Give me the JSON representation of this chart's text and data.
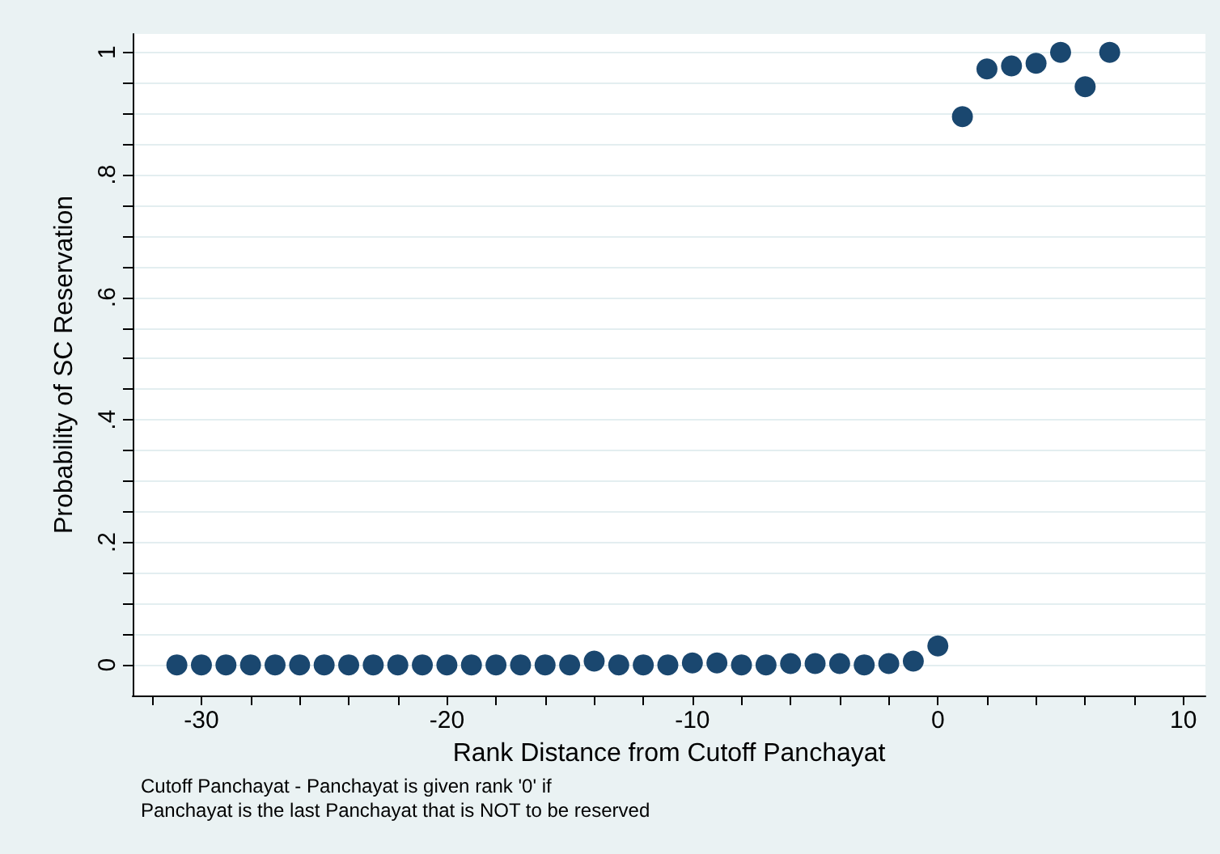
{
  "chart_data": {
    "type": "scatter",
    "xlabel": "Rank Distance from Cutoff Panchayat",
    "ylabel": "Probability of SC Reservation",
    "annotations": [
      "Cutoff Panchayat - Panchayat is given rank '0' if",
      "Panchayat is the last Panchayat that is NOT to be reserved"
    ],
    "x": [
      -31,
      -30,
      -29,
      -28,
      -27,
      -26,
      -25,
      -24,
      -23,
      -22,
      -21,
      -20,
      -19,
      -18,
      -17,
      -16,
      -15,
      -14,
      -13,
      -12,
      -11,
      -10,
      -9,
      -8,
      -7,
      -6,
      -5,
      -4,
      -3,
      -2,
      -1,
      0,
      1,
      2,
      3,
      4,
      5,
      6,
      7
    ],
    "series": [
      {
        "color": "#1a476f",
        "values": [
          0,
          0,
          0,
          0,
          0,
          0,
          0,
          0,
          0,
          0,
          0,
          0,
          0,
          0,
          0,
          0,
          0,
          0.006,
          0,
          0,
          0,
          0.003,
          0.003,
          0,
          0,
          0.002,
          0.002,
          0.002,
          0,
          0.002,
          0.006,
          0.031,
          0.895,
          0.973,
          0.978,
          0.982,
          1,
          0.944,
          1
        ]
      }
    ],
    "marker": "circle",
    "xlim": [
      -32.8,
      10.9
    ],
    "xticks": [
      {
        "value": -32,
        "label": null
      },
      -30,
      {
        "value": -28,
        "label": null
      },
      {
        "value": -26,
        "label": null
      },
      {
        "value": -24,
        "label": null
      },
      {
        "value": -22,
        "label": null
      },
      -20,
      {
        "value": -18,
        "label": null
      },
      {
        "value": -16,
        "label": null
      },
      {
        "value": -14,
        "label": null
      },
      {
        "value": -12,
        "label": null
      },
      -10,
      {
        "value": -8,
        "label": null
      },
      {
        "value": -6,
        "label": null
      },
      {
        "value": -4,
        "label": null
      },
      {
        "value": -2,
        "label": null
      },
      0,
      {
        "value": 2,
        "label": null
      },
      {
        "value": 4,
        "label": null
      },
      {
        "value": 6,
        "label": null
      },
      {
        "value": 8,
        "label": null
      },
      10
    ],
    "ylim": [
      -0.05,
      1.03
    ],
    "yticks": [
      0,
      {
        "value": 0.05,
        "label": null
      },
      {
        "value": 0.1,
        "label": null
      },
      {
        "value": 0.15,
        "label": null
      },
      {
        "value": 0.2,
        "label": ".2"
      },
      {
        "value": 0.25,
        "label": null
      },
      {
        "value": 0.3,
        "label": null
      },
      {
        "value": 0.35,
        "label": null
      },
      {
        "value": 0.4,
        "label": ".4"
      },
      {
        "value": 0.45,
        "label": null
      },
      {
        "value": 0.5,
        "label": null
      },
      {
        "value": 0.55,
        "label": null
      },
      {
        "value": 0.6,
        "label": ".6"
      },
      {
        "value": 0.65,
        "label": null
      },
      {
        "value": 0.7,
        "label": null
      },
      {
        "value": 0.75,
        "label": null
      },
      {
        "value": 0.8,
        "label": ".8"
      },
      {
        "value": 0.85,
        "label": null
      },
      {
        "value": 0.9,
        "label": null
      },
      {
        "value": 0.95,
        "label": null
      },
      1
    ],
    "grid": "y"
  }
}
